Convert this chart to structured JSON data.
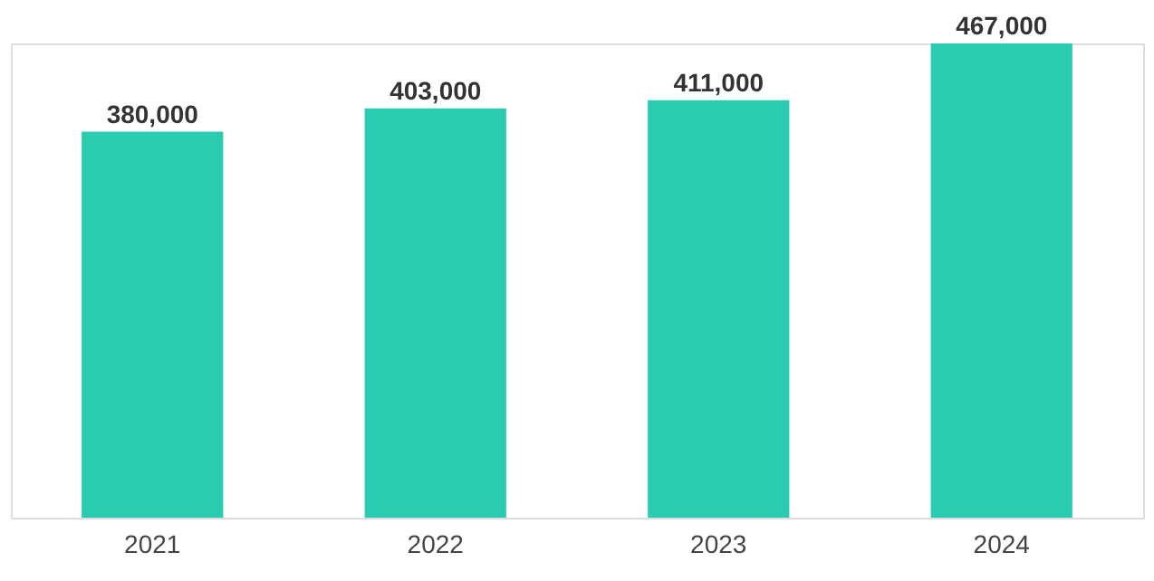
{
  "chart_data": {
    "type": "bar",
    "categories": [
      "2021",
      "2022",
      "2023",
      "2024"
    ],
    "values": [
      380000,
      403000,
      411000,
      467000
    ],
    "value_labels": [
      "380,000",
      "403,000",
      "411,000",
      "467,000"
    ],
    "color": "#2bcbb1",
    "tick_labels": "x",
    "grid": false
  }
}
